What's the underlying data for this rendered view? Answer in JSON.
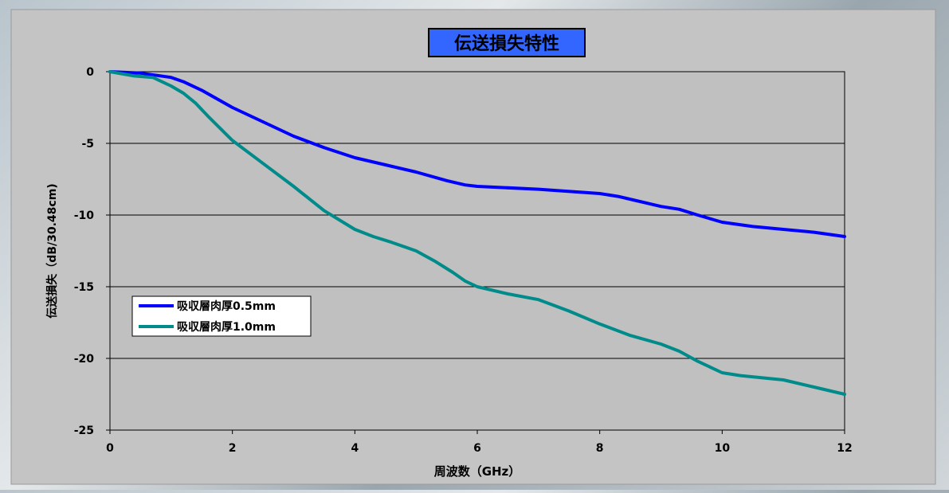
{
  "chart_data": {
    "type": "line",
    "title": "伝送損失特性",
    "xlabel": "周波数（GHz）",
    "ylabel": "伝送損失（dB/30.48cm)",
    "xlim": [
      0,
      12
    ],
    "ylim": [
      -25,
      0
    ],
    "x_ticks": [
      "0",
      "2",
      "4",
      "6",
      "8",
      "10",
      "12"
    ],
    "y_ticks": [
      "0",
      "-5",
      "-10",
      "-15",
      "-20",
      "-25"
    ],
    "grid": "horizontal",
    "legend_position": "left-middle",
    "series": [
      {
        "name": "吸収層肉厚0.5mm",
        "color": "#0000ff",
        "points": [
          [
            0,
            0
          ],
          [
            0.5,
            -0.1
          ],
          [
            1,
            -0.4
          ],
          [
            1.2,
            -0.7
          ],
          [
            1.5,
            -1.3
          ],
          [
            2,
            -2.5
          ],
          [
            2.5,
            -3.5
          ],
          [
            3,
            -4.5
          ],
          [
            3.5,
            -5.3
          ],
          [
            4,
            -6.0
          ],
          [
            4.5,
            -6.5
          ],
          [
            5,
            -7.0
          ],
          [
            5.5,
            -7.6
          ],
          [
            5.8,
            -7.9
          ],
          [
            6,
            -8.0
          ],
          [
            7,
            -8.2
          ],
          [
            8,
            -8.5
          ],
          [
            8.3,
            -8.7
          ],
          [
            8.6,
            -9.0
          ],
          [
            9,
            -9.4
          ],
          [
            9.3,
            -9.6
          ],
          [
            9.6,
            -10.0
          ],
          [
            10,
            -10.5
          ],
          [
            10.5,
            -10.8
          ],
          [
            11,
            -11.0
          ],
          [
            11.5,
            -11.2
          ],
          [
            12,
            -11.5
          ]
        ]
      },
      {
        "name": "吸収層肉厚1.0mm",
        "color": "#008b8b",
        "points": [
          [
            0,
            0
          ],
          [
            0.4,
            -0.3
          ],
          [
            0.7,
            -0.4
          ],
          [
            1,
            -1.0
          ],
          [
            1.2,
            -1.5
          ],
          [
            1.4,
            -2.2
          ],
          [
            1.6,
            -3.1
          ],
          [
            2,
            -4.8
          ],
          [
            2.5,
            -6.4
          ],
          [
            3,
            -8.0
          ],
          [
            3.5,
            -9.7
          ],
          [
            4,
            -11.0
          ],
          [
            4.3,
            -11.5
          ],
          [
            4.6,
            -11.9
          ],
          [
            5,
            -12.5
          ],
          [
            5.3,
            -13.2
          ],
          [
            5.6,
            -14.0
          ],
          [
            5.8,
            -14.6
          ],
          [
            6,
            -15.0
          ],
          [
            6.5,
            -15.5
          ],
          [
            7,
            -15.9
          ],
          [
            7.5,
            -16.7
          ],
          [
            8,
            -17.6
          ],
          [
            8.5,
            -18.4
          ],
          [
            9,
            -19.0
          ],
          [
            9.3,
            -19.5
          ],
          [
            9.6,
            -20.2
          ],
          [
            9.8,
            -20.6
          ],
          [
            10,
            -21.0
          ],
          [
            10.3,
            -21.2
          ],
          [
            11,
            -21.5
          ],
          [
            11.5,
            -22.0
          ],
          [
            12,
            -22.5
          ]
        ]
      }
    ]
  }
}
